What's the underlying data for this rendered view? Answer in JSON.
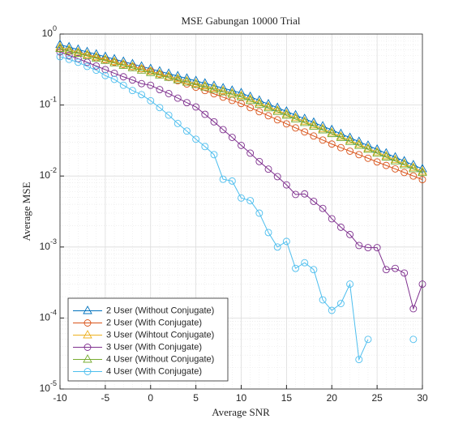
{
  "chart_data": {
    "type": "line",
    "title": "MSE Gabungan 10000 Trial",
    "xlabel": "Average SNR",
    "ylabel": "Average MSE",
    "x": [
      -10,
      -9,
      -8,
      -7,
      -6,
      -5,
      -4,
      -3,
      -2,
      -1,
      0,
      1,
      2,
      3,
      4,
      5,
      6,
      7,
      8,
      9,
      10,
      11,
      12,
      13,
      14,
      15,
      16,
      17,
      18,
      19,
      20,
      21,
      22,
      23,
      24,
      25,
      26,
      27,
      28,
      29,
      30
    ],
    "xlim": [
      -10,
      30
    ],
    "xticks": [
      -10,
      -5,
      0,
      5,
      10,
      15,
      20,
      25,
      30
    ],
    "ylim": [
      1e-05,
      1
    ],
    "yticks": [
      {
        "value": 1e-05,
        "label": "10^-5"
      },
      {
        "value": 0.0001,
        "label": "10^-4"
      },
      {
        "value": 0.001,
        "label": "10^-3"
      },
      {
        "value": 0.01,
        "label": "10^-2"
      },
      {
        "value": 0.1,
        "label": "10^-1"
      },
      {
        "value": 1,
        "label": "10^0"
      }
    ],
    "y_scale": "log",
    "grid": true,
    "minor_grid": true,
    "legend": "lower left",
    "series": [
      {
        "name": "2 User (Without Conjugate)",
        "color": "#0072BD",
        "marker": "triangle",
        "values": [
          0.708,
          0.655,
          0.605,
          0.56,
          0.518,
          0.479,
          0.443,
          0.409,
          0.378,
          0.35,
          0.324,
          0.299,
          0.277,
          0.256,
          0.237,
          0.219,
          0.202,
          0.187,
          0.173,
          0.16,
          0.148,
          0.131,
          0.116,
          0.103,
          0.0916,
          0.0813,
          0.0721,
          0.064,
          0.0568,
          0.0504,
          0.0447,
          0.0394,
          0.0347,
          0.0305,
          0.0269,
          0.0237,
          0.0209,
          0.0184,
          0.0162,
          0.0143,
          0.0126
        ]
      },
      {
        "name": "2 User (With Conjugate)",
        "color": "#D95319",
        "marker": "circle",
        "values": [
          0.617,
          0.574,
          0.535,
          0.498,
          0.463,
          0.432,
          0.402,
          0.374,
          0.348,
          0.324,
          0.302,
          0.272,
          0.244,
          0.22,
          0.198,
          0.178,
          0.16,
          0.144,
          0.129,
          0.116,
          0.105,
          0.0918,
          0.0805,
          0.0706,
          0.0619,
          0.0543,
          0.0476,
          0.0418,
          0.0366,
          0.0321,
          0.0282,
          0.0251,
          0.0224,
          0.02,
          0.0178,
          0.0158,
          0.0141,
          0.0126,
          0.0112,
          0.01,
          0.0089
        ]
      },
      {
        "name": "3 User (Wihtout Conjugate)",
        "color": "#EDB120",
        "marker": "triangle",
        "values": [
          0.651,
          0.603,
          0.557,
          0.515,
          0.477,
          0.441,
          0.408,
          0.376,
          0.348,
          0.322,
          0.298,
          0.275,
          0.255,
          0.236,
          0.218,
          0.201,
          0.186,
          0.172,
          0.159,
          0.147,
          0.136,
          0.121,
          0.107,
          0.0948,
          0.0843,
          0.0748,
          0.0663,
          0.0589,
          0.0523,
          0.0464,
          0.0411,
          0.0362,
          0.0319,
          0.0281,
          0.0247,
          0.0218,
          0.0192,
          0.0169,
          0.0149,
          0.0132,
          0.0116
        ]
      },
      {
        "name": "3 User (With Conjugate)",
        "color": "#7E2F8E",
        "marker": "circle",
        "values": [
          0.56,
          0.5,
          0.45,
          0.4,
          0.355,
          0.315,
          0.28,
          0.25,
          0.225,
          0.2,
          0.19,
          0.165,
          0.145,
          0.125,
          0.108,
          0.094,
          0.074,
          0.058,
          0.045,
          0.035,
          0.027,
          0.021,
          0.016,
          0.0125,
          0.0098,
          0.0075,
          0.0055,
          0.0056,
          0.0044,
          0.0035,
          0.0025,
          0.0019,
          0.0015,
          0.00105,
          0.00098,
          0.00098,
          0.00048,
          0.0005,
          0.00043,
          0.000135,
          0.0003
        ]
      },
      {
        "name": "4 User (Without Conjugate)",
        "color": "#77AC30",
        "marker": "triangle",
        "values": [
          0.623,
          0.576,
          0.532,
          0.493,
          0.456,
          0.422,
          0.39,
          0.36,
          0.333,
          0.308,
          0.285,
          0.263,
          0.244,
          0.225,
          0.209,
          0.193,
          0.178,
          0.165,
          0.152,
          0.141,
          0.13,
          0.115,
          0.102,
          0.0906,
          0.0806,
          0.0715,
          0.0634,
          0.0563,
          0.05,
          0.0444,
          0.0393,
          0.0347,
          0.0305,
          0.0268,
          0.0237,
          0.0209,
          0.0184,
          0.0162,
          0.0143,
          0.0126,
          0.0111
        ]
      },
      {
        "name": "4 User (With Conjugate)",
        "color": "#4DBEEE",
        "marker": "circle",
        "values": [
          0.48,
          0.44,
          0.4,
          0.35,
          0.31,
          0.26,
          0.23,
          0.19,
          0.16,
          0.14,
          0.115,
          0.092,
          0.072,
          0.055,
          0.043,
          0.033,
          0.026,
          0.02,
          0.009,
          0.0085,
          0.0049,
          0.0045,
          0.003,
          0.0016,
          0.001,
          0.0012,
          0.0005,
          0.0006,
          0.00048,
          0.00018,
          0.000128,
          0.00016,
          0.0003,
          2.6e-05,
          5e-05,
          null,
          null,
          null,
          null,
          5e-05,
          null
        ]
      }
    ]
  }
}
